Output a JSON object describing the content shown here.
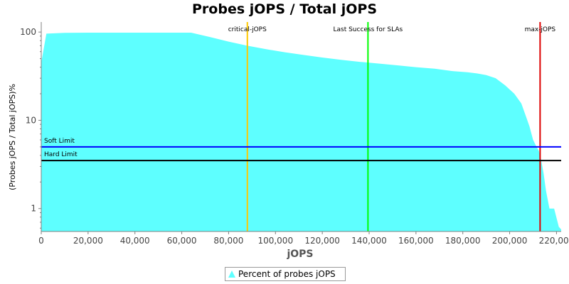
{
  "chart_data": {
    "type": "area",
    "title": "Probes jOPS / Total jOPS",
    "xlabel": "jOPS",
    "ylabel": "(Probes jOPS / Total jOPS)%",
    "xlim": [
      0,
      222000
    ],
    "ylim": [
      0.55,
      130
    ],
    "yscale": "log",
    "x_ticks": [
      0,
      20000,
      40000,
      60000,
      80000,
      100000,
      120000,
      140000,
      160000,
      180000,
      200000,
      220000
    ],
    "x_tick_labels": [
      "0",
      "20,000",
      "40,000",
      "60,000",
      "80,000",
      "100,000",
      "120,000",
      "140,000",
      "160,000",
      "180,000",
      "200,000",
      "220,000"
    ],
    "y_ticks": [
      1,
      10,
      100
    ],
    "y_tick_labels": [
      "1",
      "10",
      "100"
    ],
    "grid": false,
    "legend": {
      "placement": "bottom",
      "label": "Percent of probes jOPS",
      "color": "#5effff"
    },
    "series": [
      {
        "name": "Percent of probes jOPS",
        "color": "#5effff",
        "x": [
          0,
          2200,
          10000,
          20000,
          30000,
          40000,
          50000,
          64000,
          72000,
          80000,
          88000,
          96000,
          104000,
          112000,
          120000,
          128000,
          136000,
          144000,
          152000,
          160000,
          168000,
          176000,
          182000,
          186000,
          190000,
          194000,
          198000,
          202000,
          205000,
          207000,
          208500,
          210000,
          211500,
          212500,
          213500,
          214500,
          215500,
          217000,
          219000,
          221000,
          222000
        ],
        "y": [
          45,
          96,
          98,
          98.5,
          98.5,
          98.5,
          98.5,
          98.5,
          88,
          78,
          70,
          64,
          59,
          55,
          51.5,
          48.5,
          46,
          44,
          42,
          40,
          38.5,
          36,
          35,
          34,
          32.5,
          30,
          25,
          20,
          15.5,
          11,
          8.5,
          6,
          5,
          4.5,
          3.5,
          2.5,
          1.6,
          1,
          1,
          0.62,
          0.58
        ]
      }
    ],
    "lines": [
      {
        "orientation": "vertical",
        "label": "critical-jOPS",
        "x": 88000,
        "color": "#ffc800"
      },
      {
        "orientation": "vertical",
        "label": "Last Success for SLAs",
        "x": 139500,
        "color": "#00ff00"
      },
      {
        "orientation": "vertical",
        "label": "max-jOPS",
        "x": 213000,
        "color": "#dd0000"
      },
      {
        "orientation": "horizontal",
        "label": "Soft Limit",
        "y": 5,
        "color": "#0000ff"
      },
      {
        "orientation": "horizontal",
        "label": "Hard Limit",
        "y": 3.5,
        "color": "#000000"
      }
    ]
  }
}
